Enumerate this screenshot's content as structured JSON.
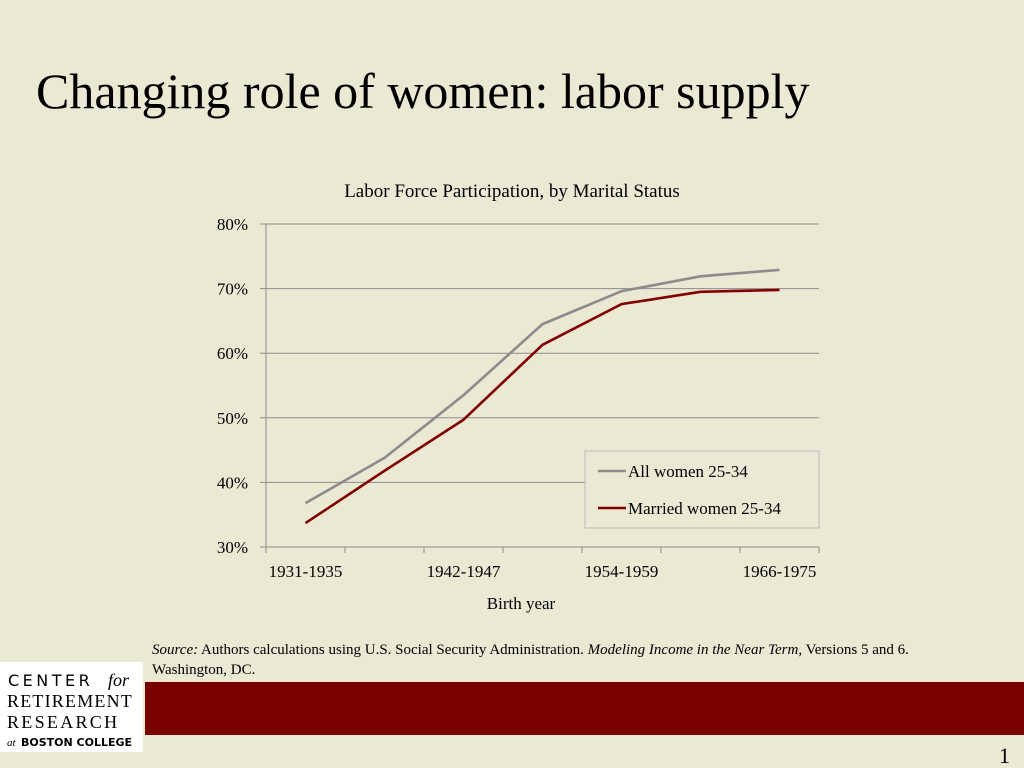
{
  "slide": {
    "title": "Changing role of women: labor supply",
    "number": "1"
  },
  "chart_data": {
    "type": "line",
    "title": "Labor Force Participation, by Marital Status",
    "x_label": "Birth year",
    "categories": [
      "1931-1935",
      null,
      "1942-1947",
      null,
      "1954-1959",
      null,
      "1966-1975"
    ],
    "series": [
      {
        "name": "All women 25-34",
        "color": "#8c8c8c",
        "values": [
          36.8,
          43.8,
          53.5,
          64.5,
          69.6,
          71.9,
          72.9
        ]
      },
      {
        "name": "Married women 25-34",
        "color": "#800000",
        "values": [
          33.7,
          41.8,
          49.7,
          61.3,
          67.6,
          69.5,
          69.8
        ]
      }
    ],
    "ylim": [
      30,
      80
    ],
    "yticks": [
      {
        "value": 30,
        "label": "30%"
      },
      {
        "value": 40,
        "label": "40%"
      },
      {
        "value": 50,
        "label": "50%"
      },
      {
        "value": 60,
        "label": "60%"
      },
      {
        "value": 70,
        "label": "70%"
      },
      {
        "value": 80,
        "label": "80%"
      }
    ],
    "grid": true,
    "legend_position": "lower right"
  },
  "source": {
    "label": "Source:",
    "text": "Authors calculations using U.S. Social Security Administration.",
    "publication": "Modeling Income in the Near Term",
    "rest": ", Versions 5 and 6. Washington, DC."
  },
  "logo": {
    "line1": "CENTER",
    "line1_suffix": "for",
    "line2": "RETIREMENT",
    "line3": "RESEARCH",
    "line4_prefix": "at",
    "line4": "BOSTON COLLEGE"
  }
}
